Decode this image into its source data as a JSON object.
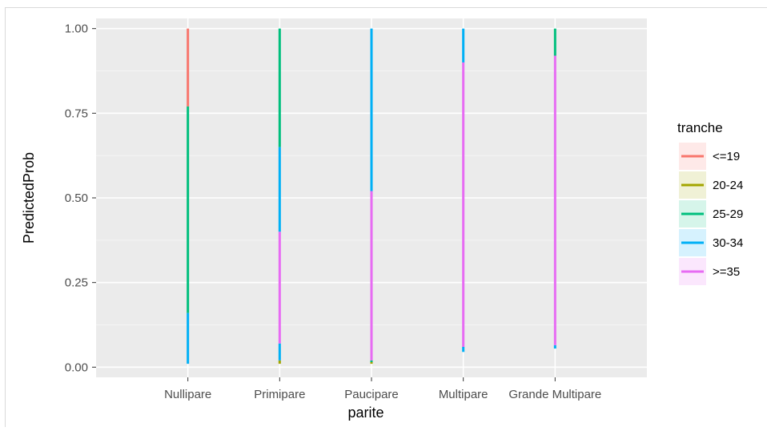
{
  "chart_data": {
    "type": "line",
    "title": "",
    "xlabel": "parite",
    "ylabel": "PredictedProb",
    "categories": [
      "Nullipare",
      "Primipare",
      "Paucipare",
      "Multipare",
      "Grande Multipare"
    ],
    "ylim": [
      -0.03,
      1.03
    ],
    "yticks": [
      0.0,
      0.25,
      0.5,
      0.75,
      1.0
    ],
    "ytick_labels": [
      "0.00",
      "0.25",
      "0.50",
      "0.75",
      "1.00"
    ],
    "grid": true,
    "legend": {
      "title": "tranche",
      "position": "right"
    },
    "series": [
      {
        "name": "<=19",
        "color": "#F8766D",
        "ranges": [
          [
            0.77,
            1.0
          ],
          [
            0.0,
            0.0
          ],
          [
            0.0,
            0.0
          ],
          [
            0.0,
            0.0
          ],
          [
            0.0,
            0.0
          ]
        ]
      },
      {
        "name": "20-24",
        "color": "#A3A500",
        "ranges": [
          [
            0.0,
            0.0
          ],
          [
            0.01,
            0.02
          ],
          [
            0.01,
            0.02
          ],
          [
            0.0,
            0.0
          ],
          [
            0.0,
            0.0
          ]
        ]
      },
      {
        "name": "25-29",
        "color": "#00BF7D",
        "ranges": [
          [
            0.16,
            0.77
          ],
          [
            0.65,
            1.0
          ],
          [
            0.015,
            0.02
          ],
          [
            0.0,
            0.0
          ],
          [
            0.92,
            1.0
          ]
        ]
      },
      {
        "name": "30-34",
        "color": "#00B0F6",
        "ranges": [
          [
            0.01,
            0.16
          ],
          [
            0.02,
            0.07
          ],
          [
            0.52,
            1.0
          ],
          [
            0.045,
            0.06
          ],
          [
            0.055,
            0.065
          ]
        ]
      },
      {
        "name": ">=35",
        "color": "#E76BF3",
        "ranges": [
          [
            0.0,
            0.0
          ],
          [
            0.07,
            0.4
          ],
          [
            0.02,
            0.52
          ],
          [
            0.06,
            0.9
          ],
          [
            0.065,
            0.92
          ]
        ]
      },
      {
        "name": "30-34",
        "color": "#00B0F6",
        "ranges": [
          [
            0.0,
            0.0
          ],
          [
            0.4,
            0.65
          ],
          [
            0.0,
            0.0
          ],
          [
            0.9,
            1.0
          ],
          [
            0.0,
            0.0
          ]
        ]
      }
    ]
  }
}
